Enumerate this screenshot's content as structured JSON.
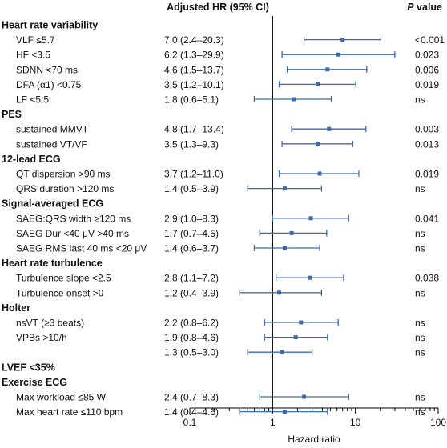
{
  "header": {
    "estimate_label": "Adjusted HR (95% CI)",
    "p_label_italic": "P",
    "p_label_rest": " value"
  },
  "axis": {
    "xlabel": "Hazard ratio",
    "scale": "log",
    "xlim": [
      0.1,
      100
    ],
    "ticks": [
      {
        "value": 0.1,
        "label": "0.1"
      },
      {
        "value": 1,
        "label": "1"
      },
      {
        "value": 10,
        "label": "10"
      },
      {
        "value": 100,
        "label": "100"
      }
    ],
    "reference_line": 1
  },
  "colors": {
    "marker": "#3d6bb0",
    "text": "#111111",
    "axis": "#000000"
  },
  "chart_data": {
    "type": "forest",
    "rows": [
      {
        "kind": "group",
        "label": "Heart rate variability"
      },
      {
        "kind": "item",
        "label": "VLF ≤5.7",
        "hr": 7.0,
        "lo": 2.4,
        "hi": 20.3,
        "ci_text": "7.0 (2.4–20.3)",
        "p": "<0.001"
      },
      {
        "kind": "item",
        "label": "HF <3.5",
        "hr": 6.2,
        "lo": 1.3,
        "hi": 29.9,
        "ci_text": "6.2 (1.3–29.9)",
        "p": "0.023"
      },
      {
        "kind": "item",
        "label": "SDNN <70 ms",
        "hr": 4.6,
        "lo": 1.5,
        "hi": 13.7,
        "ci_text": "4.6 (1.5–13.7)",
        "p": "0.006"
      },
      {
        "kind": "item",
        "label": "DFA (α1) <0.75",
        "hr": 3.5,
        "lo": 1.2,
        "hi": 10.1,
        "ci_text": "3.5 (1.2–10.1)",
        "p": "0.019"
      },
      {
        "kind": "item",
        "label": "LF <5.5",
        "hr": 1.8,
        "lo": 0.6,
        "hi": 5.1,
        "ci_text": "1.8 (0.6–5.1)",
        "p": "ns"
      },
      {
        "kind": "group",
        "label": "PES"
      },
      {
        "kind": "item",
        "label": "sustained MMVT",
        "hr": 4.8,
        "lo": 1.7,
        "hi": 13.4,
        "ci_text": "4.8 (1.7–13.4)",
        "p": "0.003"
      },
      {
        "kind": "item",
        "label": "sustained VT/VF",
        "hr": 3.5,
        "lo": 1.3,
        "hi": 9.3,
        "ci_text": "3.5 (1.3–9.3)",
        "p": "0.013"
      },
      {
        "kind": "group",
        "label": "12-lead ECG"
      },
      {
        "kind": "item",
        "label": "QT dispersion >90 ms",
        "hr": 3.7,
        "lo": 1.2,
        "hi": 11.0,
        "ci_text": "3.7 (1.2–11.0)",
        "p": "0.019"
      },
      {
        "kind": "item",
        "label": "QRS duration >120 ms",
        "hr": 1.4,
        "lo": 0.5,
        "hi": 3.9,
        "ci_text": "1.4 (0.5–3.9)",
        "p": "ns"
      },
      {
        "kind": "group",
        "label": "Signal-averaged ECG"
      },
      {
        "kind": "item",
        "label": "SAEG:QRS width ≥120 ms",
        "hr": 2.9,
        "lo": 1.0,
        "hi": 8.3,
        "ci_text": "2.9 (1.0–8.3)",
        "p": "0.041"
      },
      {
        "kind": "item",
        "label": "SAEG Dur <40 μV >40 ms",
        "hr": 1.7,
        "lo": 0.7,
        "hi": 4.5,
        "ci_text": "1.7 (0.7–4.5)",
        "p": "ns"
      },
      {
        "kind": "item",
        "label": "SAEG RMS last 40 ms <20 μV",
        "hr": 1.4,
        "lo": 0.6,
        "hi": 3.7,
        "ci_text": "1.4 (0.6–3.7)",
        "p": "ns"
      },
      {
        "kind": "group",
        "label": "Heart rate turbulence"
      },
      {
        "kind": "item",
        "label": "Turbulence slope <2.5",
        "hr": 2.8,
        "lo": 1.1,
        "hi": 7.2,
        "ci_text": "2.8 (1.1–7.2)",
        "p": "0.038"
      },
      {
        "kind": "item",
        "label": "Turbulence onset >0",
        "hr": 1.2,
        "lo": 0.4,
        "hi": 3.9,
        "ci_text": "1.2 (0.4–3.9)",
        "p": "ns"
      },
      {
        "kind": "group",
        "label": "Holter"
      },
      {
        "kind": "item",
        "label": "nsVT (≥3 beats)",
        "hr": 2.2,
        "lo": 0.8,
        "hi": 6.2,
        "ci_text": "2.2 (0.8–6.2)",
        "p": "ns"
      },
      {
        "kind": "item",
        "label": "VPBs >10/h",
        "hr": 1.9,
        "lo": 0.8,
        "hi": 4.6,
        "ci_text": "1.9 (0.8–4.6)",
        "p": "ns"
      },
      {
        "kind": "item",
        "label": "",
        "hr": 1.3,
        "lo": 0.5,
        "hi": 3.0,
        "ci_text": "1.3 (0.5–3.0)",
        "p": "ns"
      },
      {
        "kind": "group",
        "label": "LVEF <35%"
      },
      {
        "kind": "group",
        "label": "Exercise ECG"
      },
      {
        "kind": "item",
        "label": "Max workload ≤85 W",
        "hr": 2.4,
        "lo": 0.7,
        "hi": 8.3,
        "ci_text": "2.4 (0.7–8.3)",
        "p": "ns"
      },
      {
        "kind": "item",
        "label": "Max heart rate ≤110 bpm",
        "hr": 1.4,
        "lo": 0.4,
        "hi": 4.6,
        "ci_text": "1.4 (0.4–4.6)",
        "p": "ns"
      }
    ]
  }
}
